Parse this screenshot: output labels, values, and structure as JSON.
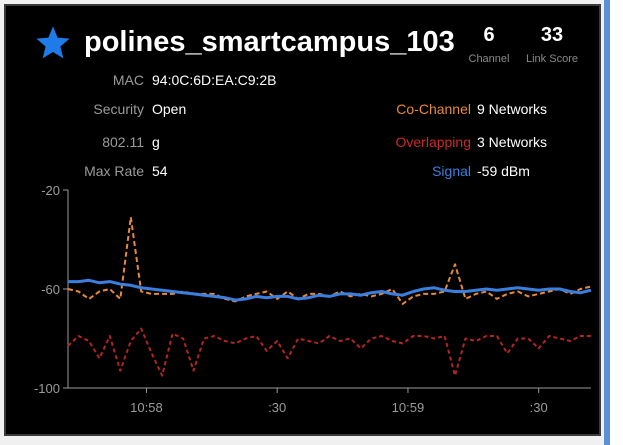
{
  "network": {
    "ssid": "polines_smartcampus_103",
    "channel": "6",
    "channel_label": "Channel",
    "link_score": "33",
    "link_score_label": "Link Score"
  },
  "details": [
    {
      "label": "MAC",
      "value": "94:0C:6D:EA:C9:2B"
    },
    {
      "label": "Security",
      "value": "Open"
    },
    {
      "label": "802.11",
      "value": "g"
    },
    {
      "label": "Max Rate",
      "value": "54"
    }
  ],
  "metrics": [
    {
      "label": "Co-Channel",
      "value": "9 Networks",
      "color": "#e58a3a"
    },
    {
      "label": "Overlapping",
      "value": "3 Networks",
      "color": "#cc2a2a"
    },
    {
      "label": "Signal",
      "value": "-59 dBm",
      "color": "#3a7fe0"
    }
  ],
  "icons": {
    "favorite": "star-icon"
  },
  "colors": {
    "accent": "#1e7be8",
    "panel_bg": "#000000"
  },
  "chart_data": {
    "type": "line",
    "ylim": [
      -100,
      -20
    ],
    "yticks": [
      "-20",
      "-60",
      "-100"
    ],
    "xticks": [
      "10:58",
      ":30",
      "10:59",
      ":30"
    ],
    "x": [
      0,
      2,
      4,
      6,
      8,
      10,
      12,
      14,
      16,
      18,
      20,
      22,
      24,
      26,
      28,
      30,
      32,
      34,
      36,
      38,
      40,
      42,
      44,
      46,
      48,
      50,
      52,
      54,
      56,
      58,
      60,
      62,
      64,
      66,
      68,
      70,
      72,
      74,
      76,
      78,
      80,
      82,
      84,
      86,
      88,
      90,
      92,
      94,
      96,
      98,
      100
    ],
    "series": [
      {
        "color": "#3a7fe0",
        "dash": "none",
        "values": [
          -57,
          -57,
          -56.5,
          -57.5,
          -57,
          -58,
          -58.5,
          -59.5,
          -60,
          -60.5,
          -61,
          -61.5,
          -62,
          -62.5,
          -63,
          -63.5,
          -64.5,
          -64,
          -63,
          -63.5,
          -63,
          -63,
          -64,
          -63.5,
          -62.5,
          -63,
          -62,
          -62,
          -62.5,
          -61.5,
          -61,
          -62,
          -62.5,
          -61,
          -60,
          -59.5,
          -60.5,
          -61,
          -61,
          -60.5,
          -60,
          -60.5,
          -60,
          -59.5,
          -60,
          -60.5,
          -60,
          -60,
          -61,
          -61.5,
          -60.5
        ]
      },
      {
        "color": "#e58a3a",
        "dash": "5,3",
        "values": [
          -60,
          -61,
          -64,
          -61,
          -60,
          -64,
          -31,
          -61,
          -62,
          -62,
          -62,
          -61,
          -62,
          -62,
          -62,
          -64,
          -65,
          -63,
          -62,
          -61,
          -64,
          -61,
          -64,
          -62,
          -62,
          -63,
          -61,
          -63,
          -62,
          -63,
          -62,
          -60,
          -66,
          -63,
          -62,
          -62,
          -61,
          -50,
          -64,
          -62,
          -61,
          -64,
          -62,
          -61,
          -63,
          -62,
          -61,
          -60,
          -62,
          -60,
          -59
        ]
      },
      {
        "color": "#b42424",
        "dash": "4,3",
        "values": [
          -83,
          -79,
          -81,
          -88,
          -79,
          -93,
          -81,
          -76,
          -86,
          -95,
          -78,
          -80,
          -93,
          -80,
          -79,
          -81,
          -82,
          -80,
          -79,
          -85,
          -81,
          -88,
          -80,
          -81,
          -82,
          -79,
          -81,
          -80,
          -84,
          -80,
          -79,
          -81,
          -82,
          -79,
          -79,
          -80,
          -79,
          -95,
          -80,
          -81,
          -79,
          -79,
          -86,
          -80,
          -80,
          -84,
          -79,
          -80,
          -81,
          -79,
          -79
        ]
      }
    ]
  }
}
